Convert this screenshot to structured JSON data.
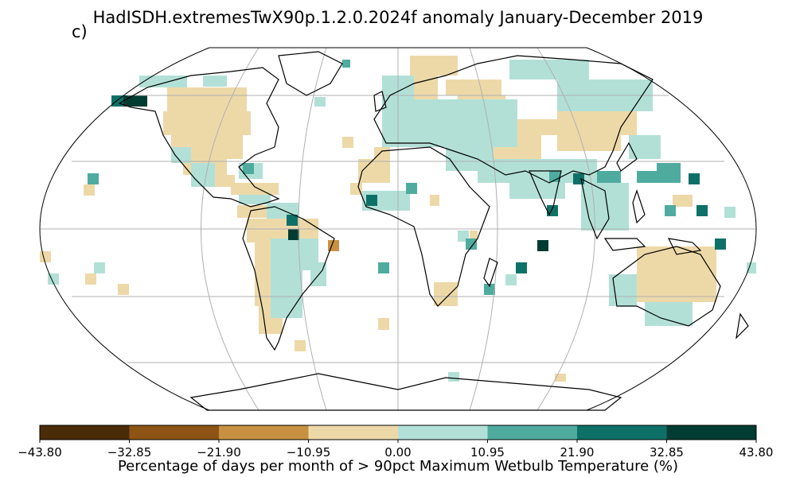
{
  "title": "HadISDH.extremesTwX90p.1.2.0.2024f anomaly January-December 2019",
  "panel_label": "c)",
  "projection": "Robinson",
  "colorbar": {
    "label": "Percentage of days per month of > 90pct Maximum Wetbulb Temperature (%)",
    "ticks": [
      "−43.80",
      "−32.85",
      "−21.90",
      "−10.95",
      "0.00",
      "10.95",
      "21.90",
      "32.85",
      "43.80"
    ],
    "colors": [
      "#4a2c08",
      "#8e5415",
      "#c89141",
      "#edd9a8",
      "#b2e0d7",
      "#50ab9f",
      "#0e7168",
      "#003c32"
    ]
  },
  "colors": {
    "land_edge": "#000000",
    "grid": "#b0b0b0",
    "missing": "#ffffff"
  }
}
